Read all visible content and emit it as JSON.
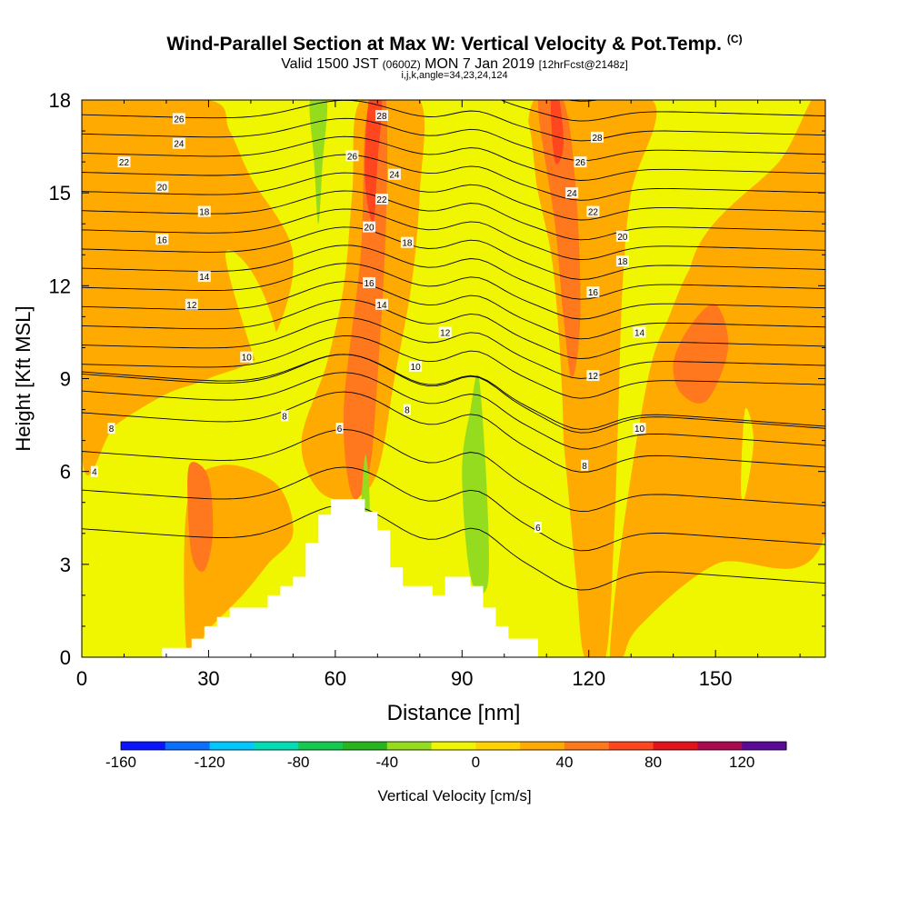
{
  "title": {
    "main": "Wind-Parallel Section at Max W: Vertical Velocity & Pot.Temp.",
    "copyright": "(C)",
    "valid_prefix": "Valid 1500 JST",
    "utc": "(0600Z)",
    "valid_date": "MON 7 Jan 2019",
    "forecast": "[12hrFcst@2148z]",
    "indices": "i,j,k,angle=34,23,24,124"
  },
  "chart_data": {
    "type": "heatmap",
    "title": "Wind-Parallel Section at Max W: Vertical Velocity & Pot.Temp.",
    "xlabel": "Distance [nm]",
    "ylabel": "Height [Kft MSL]",
    "xlim": [
      0,
      176
    ],
    "ylim": [
      0,
      18
    ],
    "xticks": [
      0,
      30,
      60,
      90,
      120,
      150
    ],
    "yticks": [
      0,
      3,
      6,
      9,
      12,
      15,
      18
    ],
    "grid": false,
    "colorbar": {
      "label": "Vertical Velocity [cm/s]",
      "ticks": [
        -160,
        -120,
        -80,
        -40,
        0,
        40,
        80,
        120
      ],
      "bins": [
        -160,
        -140,
        -120,
        -100,
        -80,
        -60,
        -40,
        -20,
        0,
        20,
        40,
        60,
        80,
        100,
        120,
        140
      ],
      "colors": [
        "#0a14ff",
        "#0a6eff",
        "#00c8ff",
        "#00dcb4",
        "#14c850",
        "#28b41e",
        "#96dc1e",
        "#f0f500",
        "#ffd200",
        "#ffaa00",
        "#ff781e",
        "#ff461e",
        "#e1141e",
        "#aa0a50",
        "#5a0a96"
      ]
    },
    "background_color": "#f0f500",
    "terrain": [
      [
        19,
        0
      ],
      [
        19,
        0.3
      ],
      [
        26,
        0.3
      ],
      [
        26,
        0.6
      ],
      [
        29,
        0.6
      ],
      [
        29,
        1
      ],
      [
        32,
        1
      ],
      [
        32,
        1.3
      ],
      [
        35,
        1.3
      ],
      [
        35,
        1.6
      ],
      [
        44,
        1.6
      ],
      [
        44,
        2
      ],
      [
        47,
        2
      ],
      [
        47,
        2.3
      ],
      [
        50,
        2.3
      ],
      [
        50,
        2.6
      ],
      [
        53,
        2.6
      ],
      [
        53,
        3.7
      ],
      [
        56,
        3.7
      ],
      [
        56,
        4.6
      ],
      [
        59,
        4.6
      ],
      [
        59,
        5.1
      ],
      [
        67,
        5.1
      ],
      [
        67,
        4.7
      ],
      [
        70,
        4.7
      ],
      [
        70,
        4.1
      ],
      [
        73,
        4.1
      ],
      [
        73,
        2.9
      ],
      [
        76,
        2.9
      ],
      [
        76,
        2.3
      ],
      [
        83,
        2.3
      ],
      [
        83,
        2
      ],
      [
        86,
        2
      ],
      [
        86,
        2.6
      ],
      [
        92,
        2.6
      ],
      [
        92,
        2.3
      ],
      [
        95,
        2.3
      ],
      [
        95,
        1.6
      ],
      [
        98,
        1.6
      ],
      [
        98,
        1
      ],
      [
        101,
        1
      ],
      [
        101,
        0.6
      ],
      [
        108,
        0.6
      ],
      [
        108,
        0
      ]
    ],
    "velocity_regions": [
      {
        "level": 20,
        "pts": [
          [
            0,
            6.5
          ],
          [
            8,
            7.5
          ],
          [
            20,
            8.5
          ],
          [
            30,
            9
          ],
          [
            44,
            10
          ],
          [
            50,
            13
          ],
          [
            40,
            15.5
          ],
          [
            35,
            17
          ],
          [
            30,
            18
          ],
          [
            0,
            18
          ]
        ]
      },
      {
        "level": 20,
        "pts": [
          [
            52,
            7
          ],
          [
            58,
            9.5
          ],
          [
            62,
            12
          ],
          [
            64,
            15
          ],
          [
            66,
            18
          ],
          [
            80,
            18
          ],
          [
            80,
            15
          ],
          [
            78,
            12
          ],
          [
            74,
            9
          ],
          [
            70,
            6
          ],
          [
            64,
            5.1
          ],
          [
            56,
            5.4
          ]
        ]
      },
      {
        "level": 20,
        "pts": [
          [
            107,
            18
          ],
          [
            110,
            12
          ],
          [
            114,
            7
          ],
          [
            117,
            2.5
          ],
          [
            119,
            0
          ],
          [
            124,
            0
          ],
          [
            126,
            4
          ],
          [
            127,
            8
          ],
          [
            128,
            12
          ],
          [
            130,
            15
          ],
          [
            135,
            18
          ]
        ]
      },
      {
        "level": 20,
        "pts": [
          [
            125,
            0
          ],
          [
            128,
            4
          ],
          [
            134,
            9
          ],
          [
            139,
            11
          ],
          [
            146,
            13
          ],
          [
            160,
            15
          ],
          [
            176,
            16
          ],
          [
            176,
            4
          ],
          [
            150,
            3
          ],
          [
            132,
            1
          ],
          [
            128,
            0
          ]
        ]
      },
      {
        "level": 20,
        "pts": [
          [
            176,
            18
          ],
          [
            176,
            9
          ],
          [
            160,
            6
          ],
          [
            148,
            6
          ],
          [
            142,
            8
          ],
          [
            145,
            13
          ],
          [
            165,
            16
          ]
        ]
      },
      {
        "level": 20,
        "pts": [
          [
            25,
            0
          ],
          [
            25,
            5
          ],
          [
            33,
            6.2
          ],
          [
            46,
            5.6
          ],
          [
            50,
            4
          ],
          [
            44,
            3
          ],
          [
            38,
            2
          ],
          [
            30,
            0.9
          ]
        ]
      },
      {
        "level": 40,
        "pts": [
          [
            25,
            5.5
          ],
          [
            26,
            6.3
          ],
          [
            30,
            5.8
          ],
          [
            31,
            4
          ],
          [
            29,
            2.8
          ],
          [
            26,
            3.3
          ]
        ]
      },
      {
        "level": 40,
        "pts": [
          [
            62,
            8
          ],
          [
            66,
            13
          ],
          [
            67,
            17
          ],
          [
            69,
            18
          ],
          [
            72,
            18
          ],
          [
            72,
            14
          ],
          [
            70,
            9
          ],
          [
            68,
            6
          ],
          [
            64,
            5.2
          ]
        ]
      },
      {
        "level": 40,
        "pts": [
          [
            108,
            18
          ],
          [
            112,
            14
          ],
          [
            114,
            11
          ],
          [
            116,
            9
          ],
          [
            118,
            11
          ],
          [
            117,
            15
          ],
          [
            114,
            18
          ]
        ]
      },
      {
        "level": 40,
        "pts": [
          [
            140,
            9.5
          ],
          [
            144,
            10.7
          ],
          [
            150,
            11.4
          ],
          [
            153,
            10
          ],
          [
            148,
            8.3
          ],
          [
            142,
            8.5
          ]
        ]
      },
      {
        "level": 60,
        "pts": [
          [
            67,
            15.5
          ],
          [
            68,
            18
          ],
          [
            71,
            18
          ],
          [
            70,
            16
          ],
          [
            69,
            14
          ]
        ]
      },
      {
        "level": 60,
        "pts": [
          [
            111,
            18
          ],
          [
            112,
            16
          ],
          [
            114,
            16.5
          ],
          [
            113,
            18
          ]
        ]
      },
      {
        "level": -20,
        "pts": [
          [
            49,
            18
          ],
          [
            54,
            17
          ],
          [
            57,
            14
          ],
          [
            54,
            11
          ],
          [
            50,
            8
          ],
          [
            48,
            9
          ],
          [
            52,
            13
          ],
          [
            53,
            16
          ]
        ]
      },
      {
        "level": -20,
        "pts": [
          [
            34,
            13
          ],
          [
            40,
            10
          ],
          [
            46,
            8
          ],
          [
            50,
            7
          ],
          [
            46,
            10.5
          ],
          [
            40,
            12.5
          ]
        ]
      },
      {
        "level": -20,
        "pts": [
          [
            83,
            18
          ],
          [
            86,
            15
          ],
          [
            90,
            11
          ],
          [
            96,
            8
          ],
          [
            100,
            5
          ],
          [
            106,
            2.5
          ],
          [
            110,
            2
          ],
          [
            114,
            6
          ],
          [
            112,
            12
          ],
          [
            108,
            15
          ],
          [
            103,
            18
          ]
        ]
      },
      {
        "level": -20,
        "pts": [
          [
            86,
            18
          ],
          [
            88,
            14
          ],
          [
            92,
            8
          ],
          [
            94,
            4
          ],
          [
            96,
            2.3
          ],
          [
            100,
            4
          ],
          [
            98,
            10
          ],
          [
            96,
            14
          ],
          [
            94,
            18
          ]
        ]
      },
      {
        "level": -20,
        "pts": [
          [
            144,
            18
          ],
          [
            150,
            15
          ],
          [
            156,
            16
          ],
          [
            158,
            18
          ]
        ]
      },
      {
        "level": -20,
        "pts": [
          [
            156,
            5.5
          ],
          [
            157,
            8
          ],
          [
            159,
            7
          ],
          [
            157,
            5.2
          ]
        ]
      },
      {
        "level": -40,
        "pts": [
          [
            54,
            18
          ],
          [
            55,
            16
          ],
          [
            56,
            14
          ],
          [
            57,
            16
          ],
          [
            58,
            18
          ]
        ]
      },
      {
        "level": -40,
        "pts": [
          [
            90,
            6
          ],
          [
            92,
            2.6
          ],
          [
            96,
            2.3
          ],
          [
            96,
            5
          ],
          [
            94,
            9
          ],
          [
            92,
            8
          ]
        ]
      },
      {
        "level": -40,
        "pts": [
          [
            66,
            4
          ],
          [
            67,
            6.5
          ],
          [
            68,
            5.5
          ],
          [
            68,
            4
          ]
        ]
      }
    ],
    "isentrope_labels": [
      {
        "text": "26",
        "x": 23,
        "y": 17.4
      },
      {
        "text": "24",
        "x": 23,
        "y": 16.6
      },
      {
        "text": "22",
        "x": 10,
        "y": 16.0
      },
      {
        "text": "20",
        "x": 19,
        "y": 15.2
      },
      {
        "text": "18",
        "x": 29,
        "y": 14.4
      },
      {
        "text": "16",
        "x": 19,
        "y": 13.5
      },
      {
        "text": "14",
        "x": 29,
        "y": 12.3
      },
      {
        "text": "12",
        "x": 26,
        "y": 11.4
      },
      {
        "text": "10",
        "x": 39,
        "y": 9.7
      },
      {
        "text": "8",
        "x": 48,
        "y": 7.8
      },
      {
        "text": "8",
        "x": 7,
        "y": 7.4
      },
      {
        "text": "6",
        "x": 61,
        "y": 7.4
      },
      {
        "text": "4",
        "x": 3,
        "y": 6.0
      },
      {
        "text": "28",
        "x": 71,
        "y": 17.5
      },
      {
        "text": "26",
        "x": 64,
        "y": 16.2
      },
      {
        "text": "24",
        "x": 74,
        "y": 15.6
      },
      {
        "text": "22",
        "x": 71,
        "y": 14.8
      },
      {
        "text": "20",
        "x": 68,
        "y": 13.9
      },
      {
        "text": "18",
        "x": 77,
        "y": 13.4
      },
      {
        "text": "16",
        "x": 68,
        "y": 12.1
      },
      {
        "text": "14",
        "x": 71,
        "y": 11.4
      },
      {
        "text": "12",
        "x": 86,
        "y": 10.5
      },
      {
        "text": "10",
        "x": 79,
        "y": 9.4
      },
      {
        "text": "8",
        "x": 77,
        "y": 8.0
      },
      {
        "text": "28",
        "x": 122,
        "y": 16.8
      },
      {
        "text": "26",
        "x": 118,
        "y": 16.0
      },
      {
        "text": "24",
        "x": 116,
        "y": 15.0
      },
      {
        "text": "22",
        "x": 121,
        "y": 14.4
      },
      {
        "text": "20",
        "x": 128,
        "y": 13.6
      },
      {
        "text": "18",
        "x": 128,
        "y": 12.8
      },
      {
        "text": "16",
        "x": 121,
        "y": 11.8
      },
      {
        "text": "14",
        "x": 132,
        "y": 10.5
      },
      {
        "text": "12",
        "x": 121,
        "y": 9.1
      },
      {
        "text": "10",
        "x": 132,
        "y": 7.4
      },
      {
        "text": "8",
        "x": 119,
        "y": 6.2
      },
      {
        "text": "6",
        "x": 108,
        "y": 4.2
      }
    ]
  }
}
